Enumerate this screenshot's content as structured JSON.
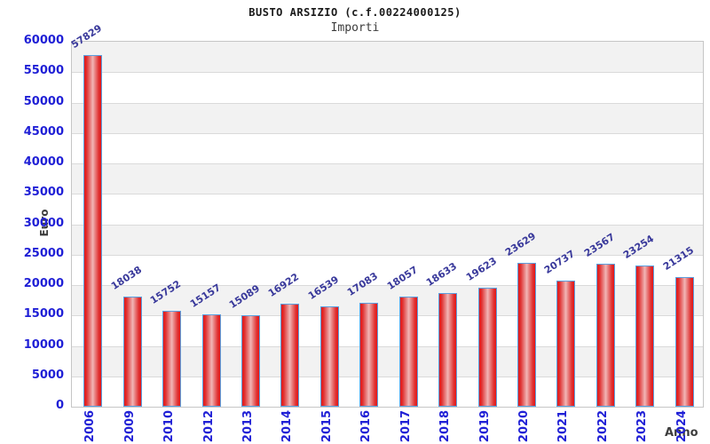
{
  "chart": {
    "title": "BUSTO ARSIZIO (c.f.00224000125)",
    "subtitle": "Importi",
    "ylabel": "Euro",
    "xlabel": "Anno"
  },
  "chart_data": {
    "type": "bar",
    "title": "BUSTO ARSIZIO (c.f.00224000125)",
    "subtitle": "Importi",
    "xlabel": "Anno",
    "ylabel": "Euro",
    "categories": [
      "2006",
      "2009",
      "2010",
      "2012",
      "2013",
      "2014",
      "2015",
      "2016",
      "2017",
      "2018",
      "2019",
      "2020",
      "2021",
      "2022",
      "2023",
      "2024"
    ],
    "values": [
      57829,
      18038,
      15752,
      15157,
      15089,
      16922,
      16539,
      17083,
      18057,
      18633,
      19623,
      23629,
      20737,
      23567,
      23254,
      21315
    ],
    "ylim": [
      0,
      60000
    ],
    "y_tick_step": 5000,
    "grid": true,
    "legend": "none",
    "value_labels_shown": true,
    "colors": {
      "bar_fill_edge": "#e41717",
      "bar_fill_center": "#f2b6b6",
      "bar_border": "#5ba0e0",
      "tick_label": "#2020d6",
      "value_label": "#39399b",
      "band_gray": "#f2f2f2",
      "band_white": "#ffffff",
      "grid_line": "#dadada",
      "plot_border": "#c6c6c6",
      "title_color": "#1a1a1a",
      "axis_title_color": "#3d3d3d"
    }
  }
}
